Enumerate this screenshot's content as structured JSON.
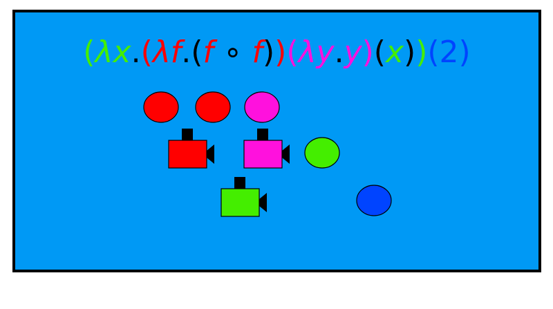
{
  "expression": {
    "tokens": [
      {
        "text": "(",
        "color": "green"
      },
      {
        "text": "λ",
        "color": "green",
        "italic": true
      },
      {
        "text": "x",
        "color": "green",
        "italic": true
      },
      {
        "text": ".",
        "color": "black"
      },
      {
        "text": "(",
        "color": "red"
      },
      {
        "text": "λ",
        "color": "red",
        "italic": true
      },
      {
        "text": "f",
        "color": "red",
        "italic": true
      },
      {
        "text": ".",
        "color": "black"
      },
      {
        "text": "(",
        "color": "black"
      },
      {
        "text": "f",
        "color": "red",
        "italic": true
      },
      {
        "text": " ∘ ",
        "color": "black"
      },
      {
        "text": "f",
        "color": "red",
        "italic": true
      },
      {
        "text": ")",
        "color": "black"
      },
      {
        "text": ")",
        "color": "red"
      },
      {
        "text": "(",
        "color": "magenta"
      },
      {
        "text": "λ",
        "color": "magenta",
        "italic": true
      },
      {
        "text": "y",
        "color": "magenta",
        "italic": true
      },
      {
        "text": ".",
        "color": "black"
      },
      {
        "text": "y",
        "color": "magenta",
        "italic": true
      },
      {
        "text": ")",
        "color": "magenta"
      },
      {
        "text": "(",
        "color": "black"
      },
      {
        "text": "x",
        "color": "green",
        "italic": true
      },
      {
        "text": ")",
        "color": "black"
      },
      {
        "text": ")",
        "color": "green"
      },
      {
        "text": "(",
        "color": "blue"
      },
      {
        "text": "2",
        "color": "blue"
      },
      {
        "text": ")",
        "color": "blue"
      }
    ]
  },
  "colors": {
    "background": "#0099f5",
    "border": "#000000",
    "red": "#ff0000",
    "green": "#44ee00",
    "magenta": "#ff11dd",
    "blue": "#0044ff",
    "black": "#000000"
  },
  "circles": [
    {
      "name": "red-circle-1",
      "color": "red"
    },
    {
      "name": "red-circle-2",
      "color": "red"
    },
    {
      "name": "magenta-circle",
      "color": "magenta"
    },
    {
      "name": "green-circle",
      "color": "green"
    },
    {
      "name": "blue-circle",
      "color": "blue"
    }
  ],
  "cameras": [
    {
      "name": "red-camera-icon",
      "color": "red"
    },
    {
      "name": "magenta-camera-icon",
      "color": "magenta"
    },
    {
      "name": "green-camera-icon",
      "color": "green"
    }
  ]
}
